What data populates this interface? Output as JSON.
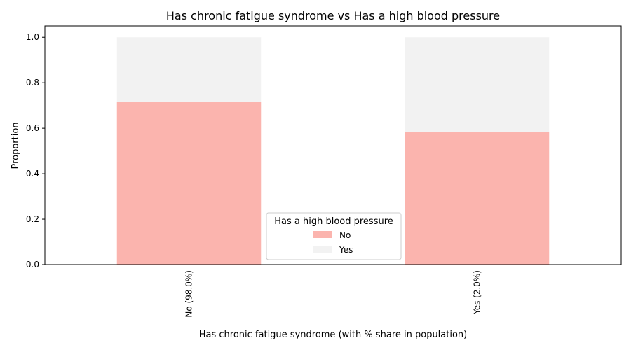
{
  "chart_data": {
    "type": "bar",
    "stacked": true,
    "title": "Has chronic fatigue syndrome vs Has a high blood pressure",
    "xlabel": "Has chronic fatigue syndrome (with % share in population)",
    "ylabel": "Proportion",
    "categories": [
      "No (98.0%)",
      "Yes (2.0%)"
    ],
    "series": [
      {
        "name": "No",
        "values": [
          0.715,
          0.582
        ],
        "color": "#fbb4ae"
      },
      {
        "name": "Yes",
        "values": [
          0.285,
          0.418
        ],
        "color": "#f2f2f2"
      }
    ],
    "ylim": [
      0,
      1.05
    ],
    "yticks": [
      "0.0",
      "0.2",
      "0.4",
      "0.6",
      "0.8",
      "1.0"
    ],
    "grid": false,
    "legend": {
      "title": "Has a high blood pressure",
      "position": "lower center"
    }
  }
}
